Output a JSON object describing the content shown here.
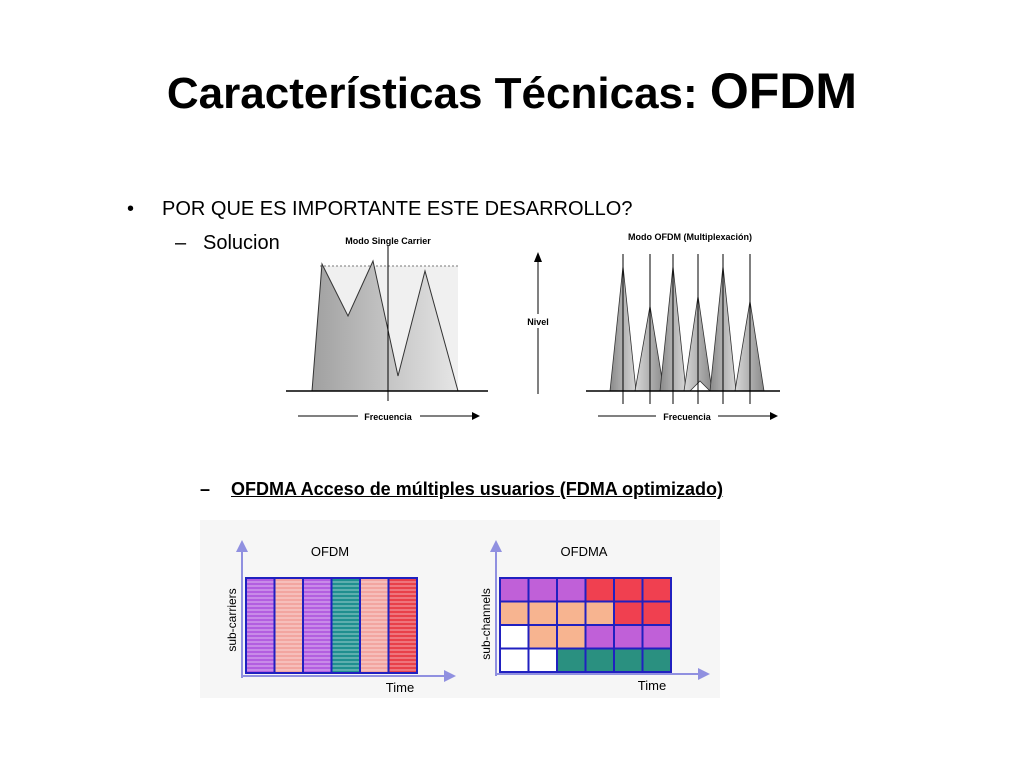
{
  "slide": {
    "title_part1": "Características Técnicas: ",
    "title_part2": "OFDM",
    "bullet_marker": "•",
    "bullet_text": "POR QUE ES IMPORTANTE ESTE DESARROLLO?",
    "sub_marker": "–",
    "sub_text": "Solucion",
    "sub2_marker": "–",
    "sub2_text": "OFDMA Acceso de múltiples usuarios (FDMA optimizado)"
  },
  "figure1": {
    "single_carrier_title": "Modo Single Carrier",
    "ofdm_title": "Modo OFDM (Multiplexación)",
    "nivel_label": "Nivel",
    "freq_label_left": "Frecuencia",
    "freq_label_right": "Frecuencia"
  },
  "figure2": {
    "ofdm_title": "OFDM",
    "ofdma_title": "OFDMA",
    "ofdm_ylabel": "sub-carriers",
    "ofdma_ylabel": "sub-channels",
    "ofdm_xlabel": "Time",
    "ofdma_xlabel": "Time",
    "ofdm_columns": [
      "#b35ee0",
      "#f2a5a0",
      "#b35ee0",
      "#1f8f8f",
      "#f2a5a0",
      "#e8404a"
    ],
    "ofdma_grid": [
      [
        "#c060d8",
        "#c060d8",
        "#c060d8",
        "#f04050",
        "#f04050",
        "#f04050"
      ],
      [
        "#f7b490",
        "#f7b490",
        "#f7b490",
        "#f7b490",
        "#f04050",
        "#f04050"
      ],
      [
        "#ffffff",
        "#f7b490",
        "#f7b490",
        "#c060d8",
        "#c060d8",
        "#c060d8"
      ],
      [
        "#ffffff",
        "#ffffff",
        "#2a9080",
        "#2a9080",
        "#2a9080",
        "#2a9080"
      ]
    ]
  }
}
